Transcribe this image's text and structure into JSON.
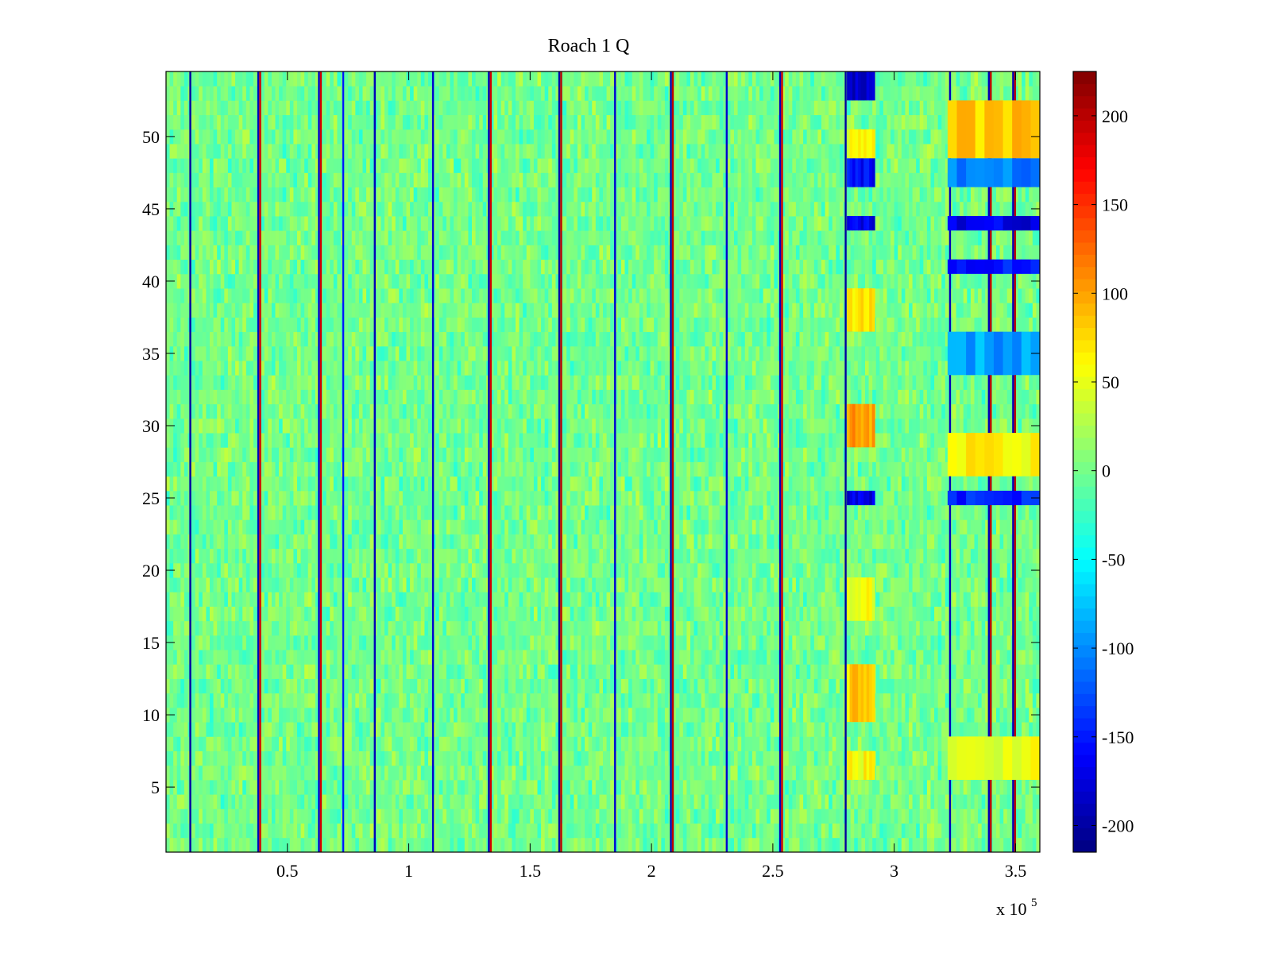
{
  "chart_data": {
    "type": "heatmap",
    "title": "Roach 1 Q",
    "xlabel": "",
    "ylabel": "",
    "x_range": [
      0,
      360000
    ],
    "y_range": [
      0.5,
      54.5
    ],
    "n_rows": 54,
    "x_ticks": [
      {
        "value": 50000,
        "label": "0.5"
      },
      {
        "value": 100000,
        "label": "1"
      },
      {
        "value": 150000,
        "label": "1.5"
      },
      {
        "value": 200000,
        "label": "2"
      },
      {
        "value": 250000,
        "label": "2.5"
      },
      {
        "value": 300000,
        "label": "3"
      },
      {
        "value": 350000,
        "label": "3.5"
      }
    ],
    "x_exponent_label": {
      "base": "x 10",
      "exp": "5"
    },
    "y_ticks": [
      {
        "value": 5,
        "label": "5"
      },
      {
        "value": 10,
        "label": "10"
      },
      {
        "value": 15,
        "label": "15"
      },
      {
        "value": 20,
        "label": "20"
      },
      {
        "value": 25,
        "label": "25"
      },
      {
        "value": 30,
        "label": "30"
      },
      {
        "value": 35,
        "label": "35"
      },
      {
        "value": 40,
        "label": "40"
      },
      {
        "value": 45,
        "label": "45"
      },
      {
        "value": 50,
        "label": "50"
      }
    ],
    "colorbar": {
      "colormap": "jet",
      "range": [
        -215,
        225
      ],
      "ticks": [
        {
          "value": 200,
          "label": "200"
        },
        {
          "value": 150,
          "label": "150"
        },
        {
          "value": 100,
          "label": "100"
        },
        {
          "value": 50,
          "label": "50"
        },
        {
          "value": 0,
          "label": "0"
        },
        {
          "value": -50,
          "label": "-50"
        },
        {
          "value": -100,
          "label": "-100"
        },
        {
          "value": -150,
          "label": "-150"
        },
        {
          "value": -200,
          "label": "-200"
        }
      ]
    },
    "background_level": {
      "mean": 0,
      "spread": 25
    },
    "vertical_stripes": [
      {
        "x": 10000,
        "value": -200
      },
      {
        "x": 38000,
        "value": -190
      },
      {
        "x": 38800,
        "value": 190
      },
      {
        "x": 63000,
        "value": -180
      },
      {
        "x": 63800,
        "value": 190
      },
      {
        "x": 73000,
        "value": -150
      },
      {
        "x": 86000,
        "value": -190
      },
      {
        "x": 110000,
        "value": -180
      },
      {
        "x": 133000,
        "value": -190
      },
      {
        "x": 133800,
        "value": 190
      },
      {
        "x": 162000,
        "value": -200
      },
      {
        "x": 162800,
        "value": 200
      },
      {
        "x": 185000,
        "value": -180
      },
      {
        "x": 208000,
        "value": -190
      },
      {
        "x": 208800,
        "value": 200
      },
      {
        "x": 231000,
        "value": -180
      },
      {
        "x": 253000,
        "value": -190
      },
      {
        "x": 253800,
        "value": 190
      },
      {
        "x": 280000,
        "value": -200
      },
      {
        "x": 323000,
        "value": -190
      },
      {
        "x": 339000,
        "value": -190
      },
      {
        "x": 339800,
        "value": 200
      },
      {
        "x": 349000,
        "value": -190
      },
      {
        "x": 349800,
        "value": 200
      }
    ],
    "highlight_blocks": [
      {
        "x": [
          280500,
          292000
        ],
        "rows": [
          53,
          54
        ],
        "value": -180
      },
      {
        "x": [
          280500,
          292000
        ],
        "rows": [
          47,
          48
        ],
        "value": -160
      },
      {
        "x": [
          280500,
          292000
        ],
        "rows": [
          44,
          44
        ],
        "value": -170
      },
      {
        "x": [
          280500,
          292000
        ],
        "rows": [
          49,
          50
        ],
        "value": 60
      },
      {
        "x": [
          280500,
          292000
        ],
        "rows": [
          37,
          39
        ],
        "value": 70
      },
      {
        "x": [
          280500,
          292000
        ],
        "rows": [
          29,
          31
        ],
        "value": 100
      },
      {
        "x": [
          280500,
          292000
        ],
        "rows": [
          25,
          25
        ],
        "value": -170
      },
      {
        "x": [
          280500,
          292000
        ],
        "rows": [
          17,
          19
        ],
        "value": 60
      },
      {
        "x": [
          280500,
          292000
        ],
        "rows": [
          10,
          13
        ],
        "value": 80
      },
      {
        "x": [
          280500,
          292000
        ],
        "rows": [
          6,
          7
        ],
        "value": 60
      },
      {
        "x": [
          322000,
          360000
        ],
        "rows": [
          44,
          44
        ],
        "value": -170
      },
      {
        "x": [
          322000,
          360000
        ],
        "rows": [
          41,
          41
        ],
        "value": -150
      },
      {
        "x": [
          322000,
          360000
        ],
        "rows": [
          47,
          48
        ],
        "value": -110
      },
      {
        "x": [
          322000,
          360000
        ],
        "rows": [
          34,
          36
        ],
        "value": -90
      },
      {
        "x": [
          322000,
          360000
        ],
        "rows": [
          25,
          25
        ],
        "value": -150
      },
      {
        "x": [
          322000,
          360000
        ],
        "rows": [
          49,
          52
        ],
        "value": 80
      },
      {
        "x": [
          322000,
          360000
        ],
        "rows": [
          27,
          29
        ],
        "value": 60
      },
      {
        "x": [
          322000,
          360000
        ],
        "rows": [
          6,
          8
        ],
        "value": 50
      }
    ]
  }
}
